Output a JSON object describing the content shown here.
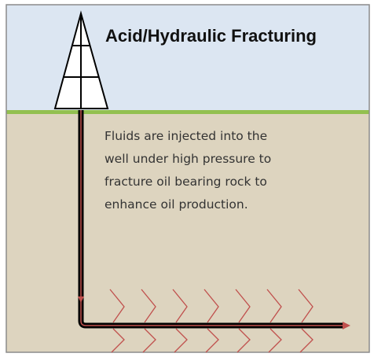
{
  "diagram": {
    "title": "Acid/Hydraulic Fracturing",
    "description": [
      "Fluids are injected into the",
      "well under  high pressure to",
      "fracture oil bearing rock to",
      "enhance oil production."
    ]
  }
}
